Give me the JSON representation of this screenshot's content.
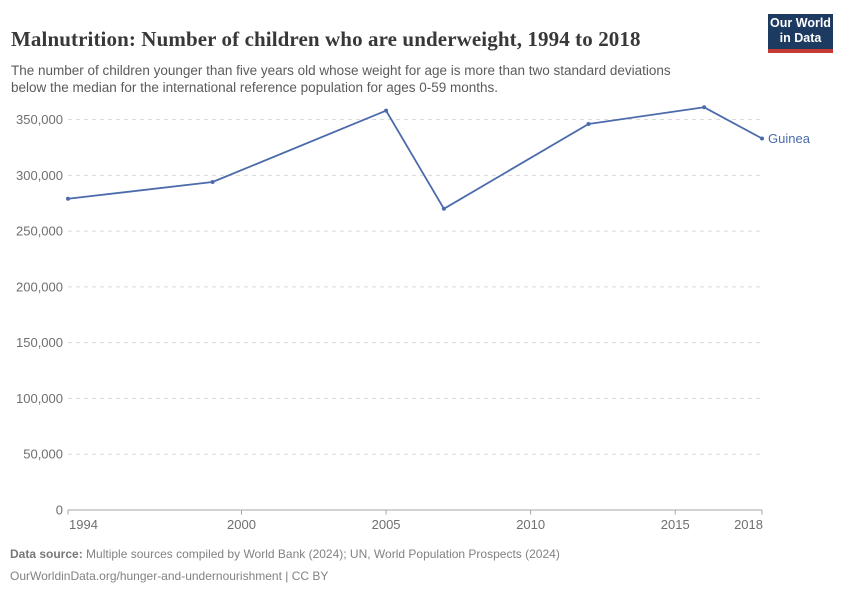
{
  "header": {
    "title": "Malnutrition: Number of children who are underweight, 1994 to 2018",
    "subtitle_line1": "The number of children younger than five years old whose weight for age is more than two standard deviations",
    "subtitle_line2": "below the median for the international reference population for ages 0-59 months."
  },
  "logo": {
    "line1": "Our World",
    "line2": "in Data",
    "bg_color": "#1d3a60",
    "bar_color": "#c43b33"
  },
  "chart_data": {
    "type": "line",
    "title": "Malnutrition: Number of children who are underweight, 1994 to 2018",
    "xlabel": "",
    "ylabel": "",
    "x": [
      1994,
      1999,
      2005,
      2007,
      2012,
      2016,
      2018
    ],
    "series": [
      {
        "name": "Guinea",
        "color": "#4C6BAC",
        "values": [
          279000,
          294000,
          358000,
          270000,
          346000,
          361000,
          333000
        ]
      }
    ],
    "x_ticks": [
      1994,
      2000,
      2005,
      2010,
      2015,
      2018
    ],
    "y_ticks": [
      0,
      50000,
      100000,
      150000,
      200000,
      250000,
      300000,
      350000
    ],
    "xlim": [
      1994,
      2018
    ],
    "ylim": [
      0,
      372000
    ],
    "grid": true,
    "legend": "end-of-line-label"
  },
  "footer": {
    "datasource_label": "Data source:",
    "datasource_text": " Multiple sources compiled by World Bank (2024); UN, World Population Prospects (2024)",
    "link_line": "OurWorldinData.org/hunger-and-undernourishment | CC BY"
  }
}
